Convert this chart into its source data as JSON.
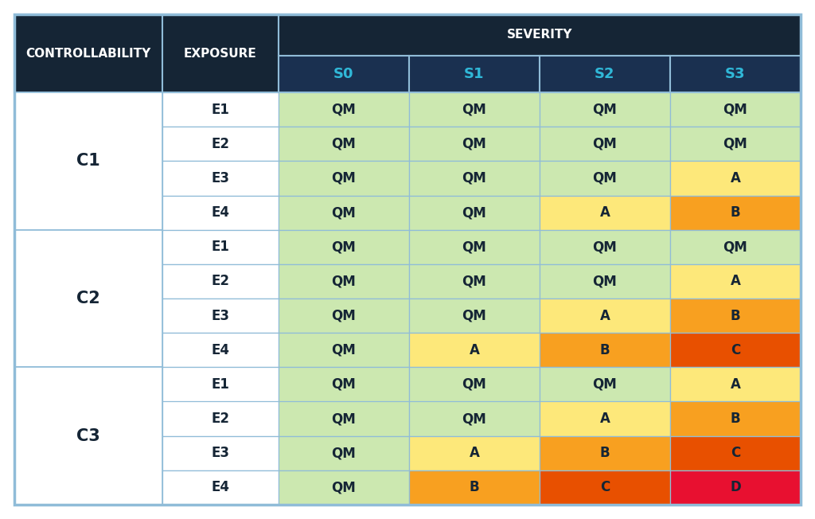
{
  "dark_header_bg": "#152535",
  "severity_sub_bg": "#1a3050",
  "severity_text_color": "#30b8d8",
  "header_text_color": "#ffffff",
  "body_text_color": "#152535",
  "border_color": "#90bcd8",
  "colors": {
    "QM": "#cce8b0",
    "A": "#fde87a",
    "B": "#f8a020",
    "C": "#e85000",
    "D": "#e81030"
  },
  "col_labels": [
    "S0",
    "S1",
    "S2",
    "S3"
  ],
  "rows": [
    {
      "c": "C1",
      "e": "E1",
      "vals": [
        "QM",
        "QM",
        "QM",
        "QM"
      ]
    },
    {
      "c": "",
      "e": "E2",
      "vals": [
        "QM",
        "QM",
        "QM",
        "QM"
      ]
    },
    {
      "c": "",
      "e": "E3",
      "vals": [
        "QM",
        "QM",
        "QM",
        "A"
      ]
    },
    {
      "c": "",
      "e": "E4",
      "vals": [
        "QM",
        "QM",
        "A",
        "B"
      ]
    },
    {
      "c": "C2",
      "e": "E1",
      "vals": [
        "QM",
        "QM",
        "QM",
        "QM"
      ]
    },
    {
      "c": "",
      "e": "E2",
      "vals": [
        "QM",
        "QM",
        "QM",
        "A"
      ]
    },
    {
      "c": "",
      "e": "E3",
      "vals": [
        "QM",
        "QM",
        "A",
        "B"
      ]
    },
    {
      "c": "",
      "e": "E4",
      "vals": [
        "QM",
        "A",
        "B",
        "C"
      ]
    },
    {
      "c": "C3",
      "e": "E1",
      "vals": [
        "QM",
        "QM",
        "QM",
        "A"
      ]
    },
    {
      "c": "",
      "e": "E2",
      "vals": [
        "QM",
        "QM",
        "A",
        "B"
      ]
    },
    {
      "c": "",
      "e": "E3",
      "vals": [
        "QM",
        "A",
        "B",
        "C"
      ]
    },
    {
      "c": "",
      "e": "E4",
      "vals": [
        "QM",
        "B",
        "C",
        "D"
      ]
    }
  ],
  "controllability_groups": [
    {
      "label": "C1",
      "start": 0,
      "end": 3
    },
    {
      "label": "C2",
      "start": 4,
      "end": 7
    },
    {
      "label": "C3",
      "start": 8,
      "end": 11
    }
  ]
}
